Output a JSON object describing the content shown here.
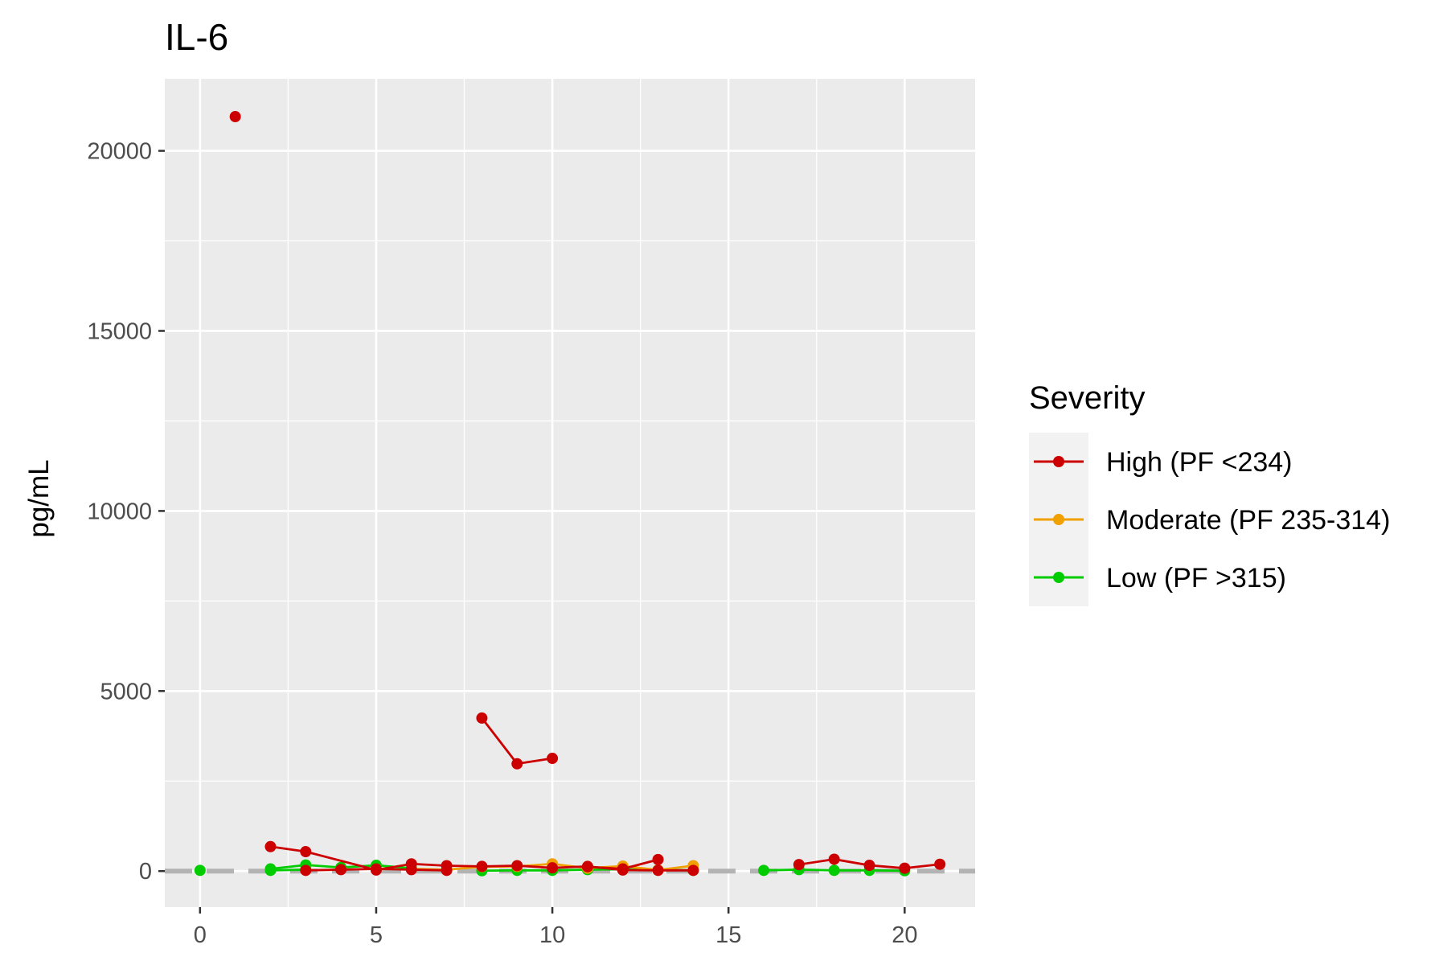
{
  "chart_data": {
    "type": "line",
    "title": "IL-6",
    "xlabel": "",
    "ylabel": "pg/mL",
    "xlim": [
      -1,
      22
    ],
    "ylim": [
      -1000,
      22000
    ],
    "x_ticks": [
      0,
      5,
      10,
      15,
      20
    ],
    "y_ticks": [
      0,
      5000,
      10000,
      15000,
      20000
    ],
    "grid": true,
    "panel_background": "#ebebeb",
    "reference_line": {
      "y": 0,
      "color": "#b3b3b3",
      "style": "dashed"
    },
    "legend": {
      "title": "Severity",
      "placement": "right",
      "items": [
        {
          "label": "High (PF <234)",
          "color": "#cc0000"
        },
        {
          "label": "Moderate (PF 235-314)",
          "color": "#f0a000"
        },
        {
          "label": "Low (PF >315)",
          "color": "#00cc00"
        }
      ]
    },
    "series": [
      {
        "group": "High",
        "color": "#cc0000",
        "points": [
          [
            1,
            20950
          ]
        ]
      },
      {
        "group": "High",
        "color": "#cc0000",
        "points": [
          [
            2,
            680
          ],
          [
            3,
            540
          ],
          [
            5,
            30
          ],
          [
            6,
            200
          ],
          [
            7,
            150
          ],
          [
            8,
            130
          ],
          [
            9,
            150
          ],
          [
            10,
            90
          ],
          [
            11,
            130
          ],
          [
            12,
            30
          ],
          [
            13,
            20
          ],
          [
            14,
            20
          ]
        ]
      },
      {
        "group": "High",
        "color": "#cc0000",
        "points": [
          [
            3,
            20
          ],
          [
            4,
            40
          ],
          [
            5,
            60
          ],
          [
            6,
            40
          ],
          [
            7,
            20
          ]
        ]
      },
      {
        "group": "High",
        "color": "#cc0000",
        "points": [
          [
            8,
            4250
          ],
          [
            9,
            2980
          ],
          [
            10,
            3130
          ]
        ]
      },
      {
        "group": "High",
        "color": "#cc0000",
        "points": [
          [
            11,
            120
          ],
          [
            12,
            60
          ],
          [
            13,
            320
          ]
        ]
      },
      {
        "group": "High",
        "color": "#cc0000",
        "points": [
          [
            17,
            180
          ],
          [
            18,
            330
          ],
          [
            19,
            160
          ],
          [
            20,
            80
          ],
          [
            21,
            190
          ]
        ]
      },
      {
        "group": "Moderate",
        "color": "#f0a000",
        "points": [
          [
            6,
            60
          ],
          [
            7,
            40
          ],
          [
            8,
            120
          ],
          [
            9,
            130
          ],
          [
            10,
            200
          ],
          [
            11,
            80
          ],
          [
            12,
            140
          ],
          [
            13,
            30
          ],
          [
            14,
            150
          ]
        ]
      },
      {
        "group": "Low",
        "color": "#00cc00",
        "points": [
          [
            0,
            20
          ]
        ]
      },
      {
        "group": "Low",
        "color": "#00cc00",
        "points": [
          [
            2,
            60
          ],
          [
            3,
            170
          ],
          [
            4,
            100
          ],
          [
            5,
            160
          ],
          [
            6,
            80
          ]
        ]
      },
      {
        "group": "Low",
        "color": "#00cc00",
        "points": [
          [
            2,
            20
          ],
          [
            3,
            40
          ]
        ]
      },
      {
        "group": "Low",
        "color": "#00cc00",
        "points": [
          [
            8,
            10
          ],
          [
            9,
            20
          ],
          [
            10,
            20
          ],
          [
            11,
            40
          ],
          [
            12,
            50
          ],
          [
            13,
            30
          ],
          [
            14,
            20
          ]
        ]
      },
      {
        "group": "Low",
        "color": "#00cc00",
        "points": [
          [
            16,
            20
          ],
          [
            17,
            40
          ],
          [
            18,
            20
          ],
          [
            19,
            20
          ],
          [
            20,
            10
          ]
        ]
      }
    ]
  }
}
